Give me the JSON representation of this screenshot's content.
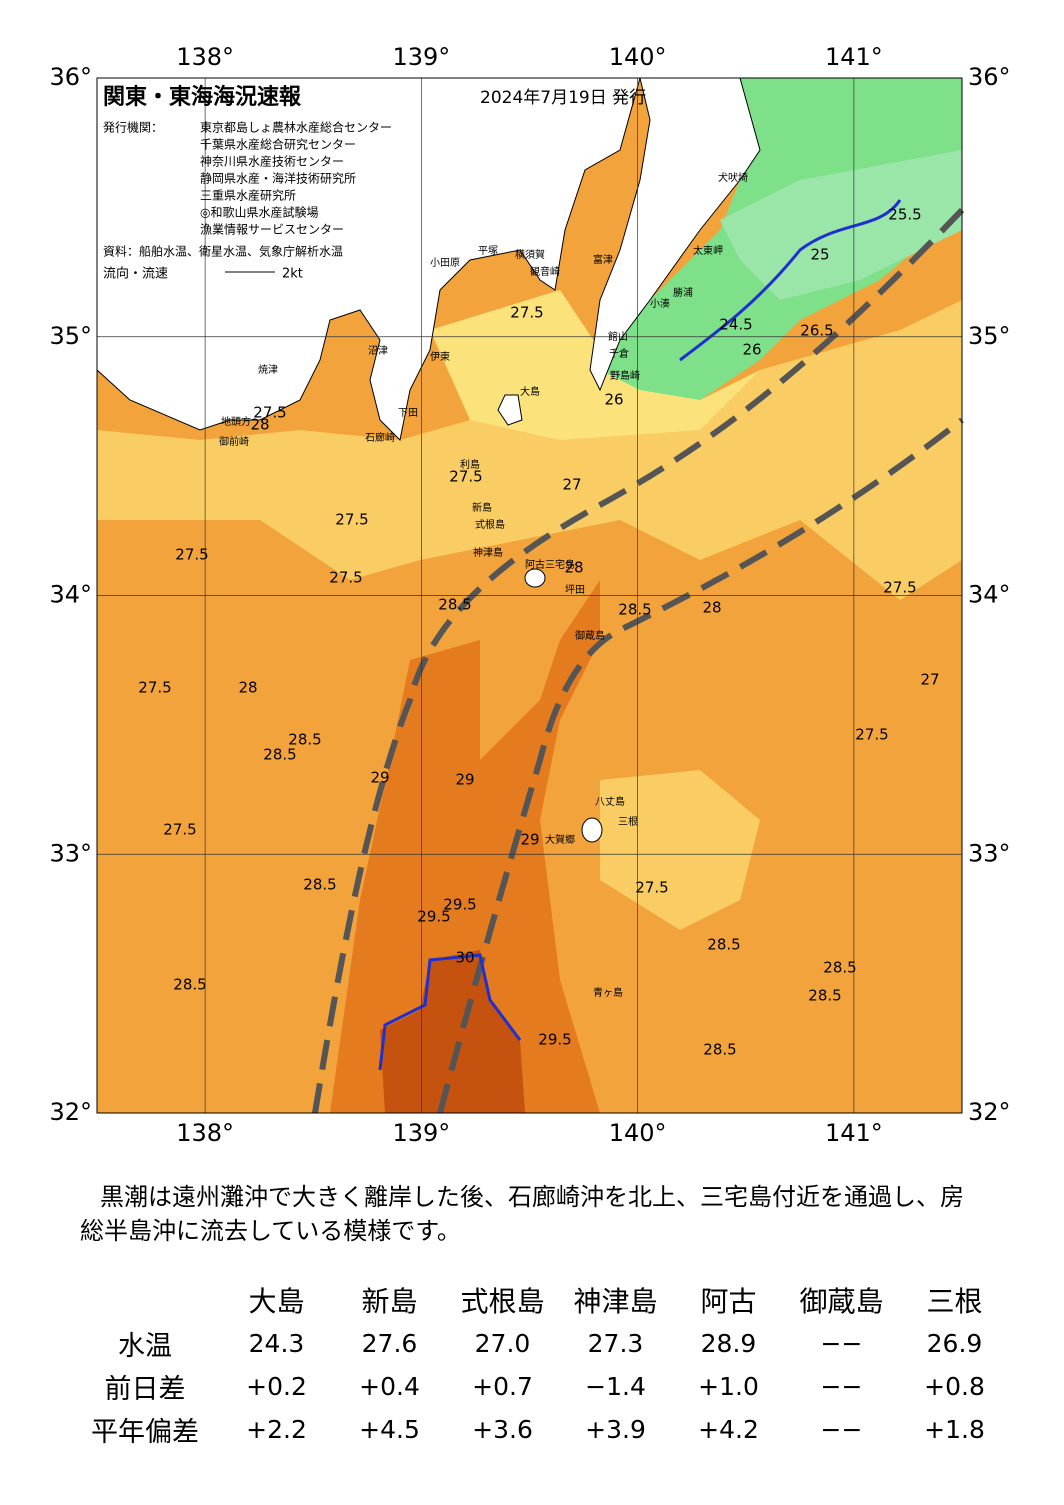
{
  "header": {
    "title": "関東・東海海況速報",
    "date": "2024年7月19日 発行",
    "issuer_label": "発行機関：",
    "issuers": [
      "東京都島しょ農林水産総合センター",
      "千葉県水産総合研究センター",
      "神奈川県水産技術センター",
      "静岡県水産・海洋技術研究所",
      "三重県水産研究所",
      "◎和歌山県水産試験場",
      "漁業情報サービスセンター"
    ],
    "sources": "資料：船舶水温、衛星水温、気象庁解析水温",
    "legend_label": "流向・流速",
    "legend_scale": "2kt"
  },
  "map": {
    "xlim": [
      137.5,
      141.5
    ],
    "ylim": [
      32,
      36
    ],
    "xticks": [
      {
        "value": 138,
        "label": "138°"
      },
      {
        "value": 139,
        "label": "139°"
      },
      {
        "value": 140,
        "label": "140°"
      },
      {
        "value": 141,
        "label": "141°"
      }
    ],
    "yticks": [
      {
        "value": 36,
        "label": "36°"
      },
      {
        "value": 35,
        "label": "35°"
      },
      {
        "value": 34,
        "label": "34°"
      },
      {
        "value": 33,
        "label": "33°"
      },
      {
        "value": 32,
        "label": "32°"
      }
    ],
    "place_labels": [
      "大島",
      "利島",
      "新島",
      "式根島",
      "神津島",
      "三宅島",
      "御蔵島",
      "八丈島",
      "三根",
      "大賀郷",
      "青ヶ島",
      "石廊崎",
      "下田",
      "伊東",
      "沼津",
      "焼津",
      "御前崎",
      "地頭方",
      "小田原",
      "平塚",
      "横須賀",
      "観音崎",
      "富津",
      "館山",
      "千倉",
      "野島崎",
      "小湊",
      "勝浦",
      "太東岬",
      "犬吠埼",
      "阿古",
      "坪田"
    ],
    "contour_labels": [
      "27.5",
      "27.5",
      "27.5",
      "27.5",
      "27.5",
      "27.5",
      "27.5",
      "28.5",
      "28.5",
      "28.5",
      "28.5",
      "28.5",
      "28.5",
      "29",
      "29",
      "29",
      "29.5",
      "29.5",
      "29.5",
      "30",
      "26",
      "26",
      "26.5",
      "25.5",
      "24.5",
      "25",
      "27",
      "27",
      "27.5",
      "28",
      "28",
      "28",
      "28",
      "28.5",
      "27.5",
      "27.5",
      "27.5",
      "28.5",
      "28.5",
      "28.5"
    ]
  },
  "description": "黒潮は遠州灘沖で大きく離岸した後、石廊崎沖を北上、三宅島付近を通過し、房総半島沖に流去している模様です。",
  "table": {
    "columns": [
      "大島",
      "新島",
      "式根島",
      "神津島",
      "阿古",
      "御蔵島",
      "三根"
    ],
    "rows": [
      {
        "label": "水温",
        "values": [
          "24.3",
          "27.6",
          "27.0",
          "27.3",
          "28.9",
          "−−",
          "26.9"
        ]
      },
      {
        "label": "前日差",
        "values": [
          "+0.2",
          "+0.4",
          "+0.7",
          "−1.4",
          "+1.0",
          "−−",
          "+0.8"
        ]
      },
      {
        "label": "平年偏差",
        "values": [
          "+2.2",
          "+4.5",
          "+3.6",
          "+3.9",
          "+4.2",
          "−−",
          "+1.8"
        ]
      }
    ]
  }
}
